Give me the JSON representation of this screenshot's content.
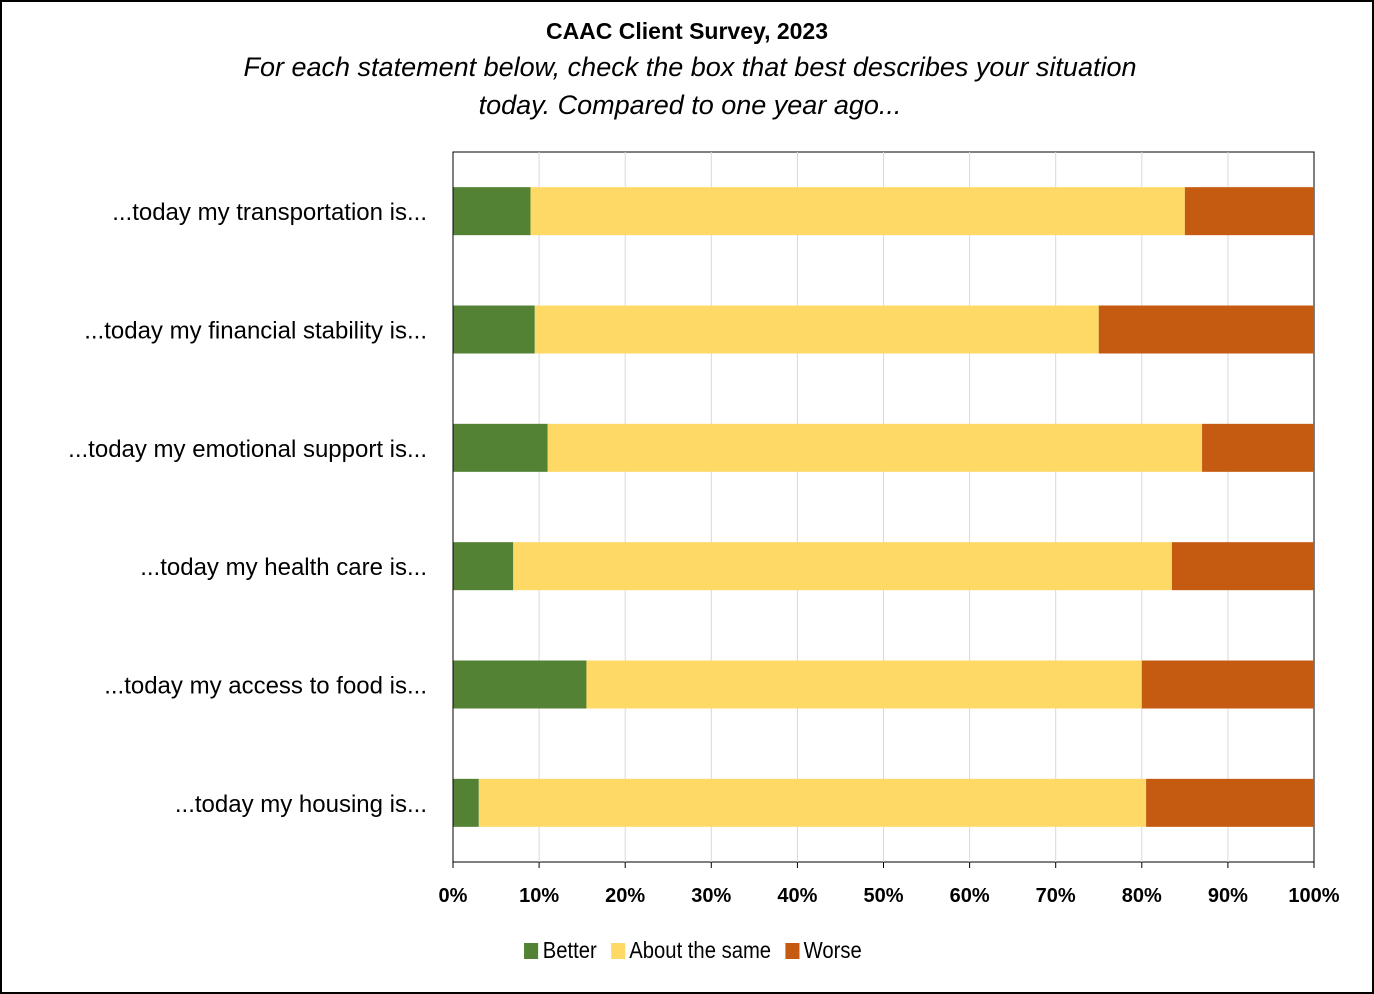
{
  "chart_data": {
    "type": "bar",
    "orientation": "horizontal",
    "stacked": "100%",
    "title": "CAAC Client Survey, 2023",
    "subtitle_lines": [
      "For each statement below, check the box that best describes your situation",
      "today.  Compared to one year ago..."
    ],
    "categories": [
      "...today my transportation is...",
      "...today my financial stability is...",
      "...today my emotional support is...",
      "...today my health care is...",
      "...today my access to food is...",
      "...today my housing is..."
    ],
    "series": [
      {
        "name": "Better",
        "color": "#548235",
        "values": [
          9,
          9.5,
          11,
          7,
          15.5,
          3
        ]
      },
      {
        "name": "About the same",
        "color": "#FFD966",
        "values": [
          76,
          65.5,
          76,
          76.5,
          64.5,
          77.5
        ]
      },
      {
        "name": "Worse",
        "color": "#C55A11",
        "values": [
          15,
          25,
          13,
          16.5,
          20,
          19.5
        ]
      }
    ],
    "xlim": [
      0,
      100
    ],
    "xticks": [
      "0%",
      "10%",
      "20%",
      "30%",
      "40%",
      "50%",
      "60%",
      "70%",
      "80%",
      "90%",
      "100%"
    ],
    "grid": true,
    "legend_position": "bottom"
  }
}
